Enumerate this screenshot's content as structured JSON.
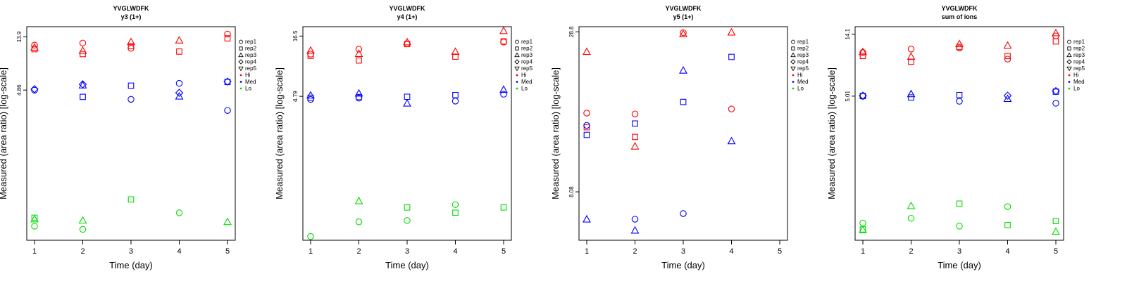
{
  "colors": {
    "Hi": "#ff0000",
    "Med": "#0000ff",
    "Lo": "#00dd00"
  },
  "chart_data": [
    {
      "type": "scatter",
      "title": "YVGLWDFK",
      "subtitle": "y3 (1+)",
      "xlabel": "Time (day)",
      "ylabel": "Measured (area ratio) [log-scale]",
      "x_ticks": [
        "1",
        "2",
        "3",
        "4",
        "5"
      ],
      "y_tick_labels": [
        "4.86",
        "13.9"
      ],
      "y_tick_values": [
        4.86,
        13.9
      ],
      "ylim_log": [
        0.25,
        17
      ],
      "legend": [
        "rep1",
        "rep2",
        "rep3",
        "rep4",
        "rep5",
        "Hi",
        "Med",
        "Lo"
      ],
      "points": [
        {
          "x": 1,
          "y": 11.8,
          "group": "Hi",
          "rep": "rep1"
        },
        {
          "x": 1,
          "y": 10.9,
          "group": "Hi",
          "rep": "rep2"
        },
        {
          "x": 1,
          "y": 11.3,
          "group": "Hi",
          "rep": "rep3"
        },
        {
          "x": 2,
          "y": 12.3,
          "group": "Hi",
          "rep": "rep1"
        },
        {
          "x": 2,
          "y": 9.9,
          "group": "Hi",
          "rep": "rep2"
        },
        {
          "x": 2,
          "y": 10.6,
          "group": "Hi",
          "rep": "rep3"
        },
        {
          "x": 3,
          "y": 11.1,
          "group": "Hi",
          "rep": "rep1"
        },
        {
          "x": 3,
          "y": 11.6,
          "group": "Hi",
          "rep": "rep2"
        },
        {
          "x": 3,
          "y": 12.6,
          "group": "Hi",
          "rep": "rep3"
        },
        {
          "x": 4,
          "y": 10.4,
          "group": "Hi",
          "rep": "rep2"
        },
        {
          "x": 4,
          "y": 13.0,
          "group": "Hi",
          "rep": "rep3"
        },
        {
          "x": 5,
          "y": 14.7,
          "group": "Hi",
          "rep": "rep1"
        },
        {
          "x": 5,
          "y": 13.5,
          "group": "Hi",
          "rep": "rep2"
        },
        {
          "x": 1,
          "y": 4.85,
          "group": "Med",
          "rep": "rep1"
        },
        {
          "x": 1,
          "y": 4.95,
          "group": "Med",
          "rep": "rep4"
        },
        {
          "x": 2,
          "y": 4.25,
          "group": "Med",
          "rep": "rep2"
        },
        {
          "x": 2,
          "y": 5.35,
          "group": "Med",
          "rep": "rep3"
        },
        {
          "x": 2,
          "y": 5.45,
          "group": "Med",
          "rep": "rep4"
        },
        {
          "x": 3,
          "y": 4.05,
          "group": "Med",
          "rep": "rep1"
        },
        {
          "x": 3,
          "y": 5.3,
          "group": "Med",
          "rep": "rep2"
        },
        {
          "x": 4,
          "y": 5.55,
          "group": "Med",
          "rep": "rep1"
        },
        {
          "x": 4,
          "y": 4.3,
          "group": "Med",
          "rep": "rep3"
        },
        {
          "x": 4,
          "y": 4.6,
          "group": "Med",
          "rep": "rep4"
        },
        {
          "x": 5,
          "y": 3.25,
          "group": "Med",
          "rep": "rep1"
        },
        {
          "x": 5,
          "y": 5.7,
          "group": "Med",
          "rep": "rep2"
        },
        {
          "x": 5,
          "y": 5.75,
          "group": "Med",
          "rep": "rep4"
        },
        {
          "x": 1,
          "y": 0.33,
          "group": "Lo",
          "rep": "rep1"
        },
        {
          "x": 1,
          "y": 0.39,
          "group": "Lo",
          "rep": "rep2"
        },
        {
          "x": 1,
          "y": 0.38,
          "group": "Lo",
          "rep": "rep3"
        },
        {
          "x": 2,
          "y": 0.31,
          "group": "Lo",
          "rep": "rep1"
        },
        {
          "x": 2,
          "y": 0.37,
          "group": "Lo",
          "rep": "rep3"
        },
        {
          "x": 3,
          "y": 0.56,
          "group": "Lo",
          "rep": "rep2"
        },
        {
          "x": 4,
          "y": 0.43,
          "group": "Lo",
          "rep": "rep1"
        },
        {
          "x": 5,
          "y": 0.36,
          "group": "Lo",
          "rep": "rep3"
        }
      ]
    },
    {
      "type": "scatter",
      "title": "YVGLWDFK",
      "subtitle": "y4 (1+)",
      "xlabel": "Time (day)",
      "ylabel": "Measured (area ratio) [log-scale]",
      "x_ticks": [
        "1",
        "2",
        "3",
        "4",
        "5"
      ],
      "y_tick_labels": [
        "4.79",
        "16.5"
      ],
      "y_tick_values": [
        4.79,
        16.5
      ],
      "ylim_log": [
        0.25,
        20
      ],
      "legend": [
        "rep1",
        "rep2",
        "rep3",
        "rep4",
        "rep5",
        "Hi",
        "Med",
        "Lo"
      ],
      "points": [
        {
          "x": 1,
          "y": 11.4,
          "group": "Hi",
          "rep": "rep1"
        },
        {
          "x": 1,
          "y": 11.0,
          "group": "Hi",
          "rep": "rep2"
        },
        {
          "x": 1,
          "y": 12.3,
          "group": "Hi",
          "rep": "rep3"
        },
        {
          "x": 2,
          "y": 12.6,
          "group": "Hi",
          "rep": "rep1"
        },
        {
          "x": 2,
          "y": 10.0,
          "group": "Hi",
          "rep": "rep2"
        },
        {
          "x": 2,
          "y": 11.5,
          "group": "Hi",
          "rep": "rep3"
        },
        {
          "x": 3,
          "y": 14.1,
          "group": "Hi",
          "rep": "rep1"
        },
        {
          "x": 3,
          "y": 14.0,
          "group": "Hi",
          "rep": "rep2"
        },
        {
          "x": 3,
          "y": 14.6,
          "group": "Hi",
          "rep": "rep3"
        },
        {
          "x": 4,
          "y": 10.8,
          "group": "Hi",
          "rep": "rep2"
        },
        {
          "x": 4,
          "y": 12.0,
          "group": "Hi",
          "rep": "rep3"
        },
        {
          "x": 5,
          "y": 14.6,
          "group": "Hi",
          "rep": "rep1"
        },
        {
          "x": 5,
          "y": 14.8,
          "group": "Hi",
          "rep": "rep2"
        },
        {
          "x": 5,
          "y": 18.4,
          "group": "Hi",
          "rep": "rep3"
        },
        {
          "x": 1,
          "y": 4.5,
          "group": "Med",
          "rep": "rep1"
        },
        {
          "x": 1,
          "y": 4.65,
          "group": "Med",
          "rep": "rep2"
        },
        {
          "x": 1,
          "y": 4.9,
          "group": "Med",
          "rep": "rep3"
        },
        {
          "x": 2,
          "y": 4.62,
          "group": "Med",
          "rep": "rep1"
        },
        {
          "x": 2,
          "y": 4.72,
          "group": "Med",
          "rep": "rep2"
        },
        {
          "x": 2,
          "y": 5.1,
          "group": "Med",
          "rep": "rep3"
        },
        {
          "x": 3,
          "y": 4.75,
          "group": "Med",
          "rep": "rep2"
        },
        {
          "x": 3,
          "y": 4.15,
          "group": "Med",
          "rep": "rep3"
        },
        {
          "x": 4,
          "y": 4.35,
          "group": "Med",
          "rep": "rep1"
        },
        {
          "x": 4,
          "y": 4.92,
          "group": "Med",
          "rep": "rep2"
        },
        {
          "x": 5,
          "y": 5.0,
          "group": "Med",
          "rep": "rep1"
        },
        {
          "x": 5,
          "y": 5.5,
          "group": "Med",
          "rep": "rep3"
        },
        {
          "x": 1,
          "y": 0.27,
          "group": "Lo",
          "rep": "rep1"
        },
        {
          "x": 2,
          "y": 0.365,
          "group": "Lo",
          "rep": "rep1"
        },
        {
          "x": 2,
          "y": 0.56,
          "group": "Lo",
          "rep": "rep3"
        },
        {
          "x": 3,
          "y": 0.375,
          "group": "Lo",
          "rep": "rep1"
        },
        {
          "x": 3,
          "y": 0.49,
          "group": "Lo",
          "rep": "rep2"
        },
        {
          "x": 4,
          "y": 0.52,
          "group": "Lo",
          "rep": "rep1"
        },
        {
          "x": 4,
          "y": 0.44,
          "group": "Lo",
          "rep": "rep2"
        },
        {
          "x": 5,
          "y": 0.49,
          "group": "Lo",
          "rep": "rep2"
        }
      ]
    },
    {
      "type": "scatter",
      "title": "YVGLWDFK",
      "subtitle": "y5 (1+)",
      "xlabel": "Time (day)",
      "ylabel": "Measured (area ratio) [log-scale]",
      "x_ticks": [
        "1",
        "2",
        "3",
        "4",
        "5"
      ],
      "y_tick_labels": [
        "8.08",
        "28.8"
      ],
      "y_tick_values": [
        8.08,
        28.8
      ],
      "ylim_log": [
        5.5,
        30
      ],
      "legend": [
        "rep1",
        "rep2",
        "rep3",
        "rep4",
        "rep5",
        "Hi",
        "Med",
        "Lo"
      ],
      "points": [
        {
          "x": 1,
          "y": 15.1,
          "group": "Hi",
          "rep": "rep1"
        },
        {
          "x": 1,
          "y": 13.5,
          "group": "Hi",
          "rep": "rep2"
        },
        {
          "x": 1,
          "y": 24.6,
          "group": "Hi",
          "rep": "rep3"
        },
        {
          "x": 2,
          "y": 15.0,
          "group": "Hi",
          "rep": "rep1"
        },
        {
          "x": 2,
          "y": 12.5,
          "group": "Hi",
          "rep": "rep2"
        },
        {
          "x": 2,
          "y": 11.6,
          "group": "Hi",
          "rep": "rep3"
        },
        {
          "x": 3,
          "y": 28.6,
          "group": "Hi",
          "rep": "rep1"
        },
        {
          "x": 3,
          "y": 28.3,
          "group": "Hi",
          "rep": "rep3"
        },
        {
          "x": 4,
          "y": 15.6,
          "group": "Hi",
          "rep": "rep1"
        },
        {
          "x": 4,
          "y": 28.7,
          "group": "Hi",
          "rep": "rep3"
        },
        {
          "x": 1,
          "y": 13.7,
          "group": "Med",
          "rep": "rep1"
        },
        {
          "x": 1,
          "y": 12.7,
          "group": "Med",
          "rep": "rep2"
        },
        {
          "x": 1,
          "y": 6.5,
          "group": "Med",
          "rep": "rep3"
        },
        {
          "x": 2,
          "y": 6.5,
          "group": "Med",
          "rep": "rep1"
        },
        {
          "x": 2,
          "y": 13.9,
          "group": "Med",
          "rep": "rep2"
        },
        {
          "x": 2,
          "y": 5.95,
          "group": "Med",
          "rep": "rep3"
        },
        {
          "x": 3,
          "y": 6.8,
          "group": "Med",
          "rep": "rep1"
        },
        {
          "x": 3,
          "y": 16.5,
          "group": "Med",
          "rep": "rep2"
        },
        {
          "x": 3,
          "y": 21.2,
          "group": "Med",
          "rep": "rep3"
        },
        {
          "x": 4,
          "y": 23.6,
          "group": "Med",
          "rep": "rep2"
        },
        {
          "x": 4,
          "y": 12.1,
          "group": "Med",
          "rep": "rep3"
        }
      ]
    },
    {
      "type": "scatter",
      "title": "YVGLWDFK",
      "subtitle": "sum of ions",
      "xlabel": "Time (day)",
      "ylabel": "Measured (area ratio) [log-scale]",
      "x_ticks": [
        "1",
        "2",
        "3",
        "4",
        "5"
      ],
      "y_tick_labels": [
        "5.01",
        "14.1"
      ],
      "y_tick_values": [
        5.01,
        14.1
      ],
      "ylim_log": [
        0.45,
        16
      ],
      "legend": [
        "rep1",
        "rep2",
        "rep3",
        "rep4",
        "rep5",
        "Hi",
        "Med",
        "Lo"
      ],
      "points": [
        {
          "x": 1,
          "y": 10.4,
          "group": "Hi",
          "rep": "rep1"
        },
        {
          "x": 1,
          "y": 9.8,
          "group": "Hi",
          "rep": "rep2"
        },
        {
          "x": 1,
          "y": 10.5,
          "group": "Hi",
          "rep": "rep3"
        },
        {
          "x": 2,
          "y": 11.0,
          "group": "Hi",
          "rep": "rep1"
        },
        {
          "x": 2,
          "y": 8.9,
          "group": "Hi",
          "rep": "rep2"
        },
        {
          "x": 2,
          "y": 9.7,
          "group": "Hi",
          "rep": "rep3"
        },
        {
          "x": 3,
          "y": 11.2,
          "group": "Hi",
          "rep": "rep1"
        },
        {
          "x": 3,
          "y": 11.4,
          "group": "Hi",
          "rep": "rep2"
        },
        {
          "x": 3,
          "y": 12.0,
          "group": "Hi",
          "rep": "rep3"
        },
        {
          "x": 4,
          "y": 9.3,
          "group": "Hi",
          "rep": "rep1"
        },
        {
          "x": 4,
          "y": 9.8,
          "group": "Hi",
          "rep": "rep2"
        },
        {
          "x": 4,
          "y": 11.7,
          "group": "Hi",
          "rep": "rep3"
        },
        {
          "x": 5,
          "y": 13.7,
          "group": "Hi",
          "rep": "rep1"
        },
        {
          "x": 5,
          "y": 12.5,
          "group": "Hi",
          "rep": "rep2"
        },
        {
          "x": 5,
          "y": 14.4,
          "group": "Hi",
          "rep": "rep3"
        },
        {
          "x": 1,
          "y": 5.0,
          "group": "Med",
          "rep": "rep1"
        },
        {
          "x": 1,
          "y": 5.02,
          "group": "Med",
          "rep": "rep2"
        },
        {
          "x": 1,
          "y": 5.05,
          "group": "Med",
          "rep": "rep4"
        },
        {
          "x": 2,
          "y": 4.9,
          "group": "Med",
          "rep": "rep2"
        },
        {
          "x": 2,
          "y": 5.2,
          "group": "Med",
          "rep": "rep3"
        },
        {
          "x": 3,
          "y": 4.6,
          "group": "Med",
          "rep": "rep1"
        },
        {
          "x": 3,
          "y": 5.1,
          "group": "Med",
          "rep": "rep2"
        },
        {
          "x": 4,
          "y": 4.8,
          "group": "Med",
          "rep": "rep3"
        },
        {
          "x": 4,
          "y": 5.05,
          "group": "Med",
          "rep": "rep4"
        },
        {
          "x": 5,
          "y": 4.45,
          "group": "Med",
          "rep": "rep1"
        },
        {
          "x": 5,
          "y": 5.4,
          "group": "Med",
          "rep": "rep2"
        },
        {
          "x": 5,
          "y": 5.45,
          "group": "Med",
          "rep": "rep4"
        },
        {
          "x": 1,
          "y": 0.6,
          "group": "Lo",
          "rep": "rep1"
        },
        {
          "x": 1,
          "y": 0.54,
          "group": "Lo",
          "rep": "rep2"
        },
        {
          "x": 1,
          "y": 0.535,
          "group": "Lo",
          "rep": "rep3"
        },
        {
          "x": 2,
          "y": 0.65,
          "group": "Lo",
          "rep": "rep1"
        },
        {
          "x": 2,
          "y": 0.8,
          "group": "Lo",
          "rep": "rep3"
        },
        {
          "x": 3,
          "y": 0.57,
          "group": "Lo",
          "rep": "rep1"
        },
        {
          "x": 3,
          "y": 0.83,
          "group": "Lo",
          "rep": "rep2"
        },
        {
          "x": 4,
          "y": 0.79,
          "group": "Lo",
          "rep": "rep1"
        },
        {
          "x": 4,
          "y": 0.58,
          "group": "Lo",
          "rep": "rep2"
        },
        {
          "x": 5,
          "y": 0.62,
          "group": "Lo",
          "rep": "rep2"
        },
        {
          "x": 5,
          "y": 0.52,
          "group": "Lo",
          "rep": "rep3"
        }
      ]
    }
  ]
}
